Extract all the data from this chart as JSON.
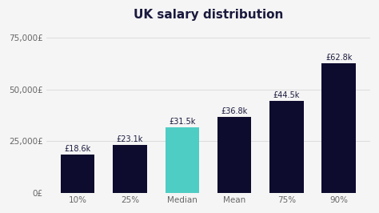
{
  "title": "UK salary distribution",
  "categories": [
    "10%",
    "25%",
    "Median",
    "Mean",
    "75%",
    "90%"
  ],
  "values": [
    18600,
    23100,
    31500,
    36800,
    44500,
    62800
  ],
  "labels": [
    "£18.6k",
    "£23.1k",
    "£31.5k",
    "£36.8k",
    "£44.5k",
    "£62.8k"
  ],
  "bar_colors": [
    "#0d0b2e",
    "#0d0b2e",
    "#4ecdc4",
    "#0d0b2e",
    "#0d0b2e",
    "#0d0b2e"
  ],
  "background_color": "#f5f5f5",
  "plot_bg_color": "#f5f5f5",
  "ylim": [
    0,
    80000
  ],
  "yticks": [
    0,
    25000,
    50000,
    75000
  ],
  "ytick_labels": [
    "0£",
    "25,000£",
    "50,000£",
    "75,000£"
  ],
  "title_fontsize": 11,
  "label_fontsize": 7,
  "tick_fontsize": 7.5,
  "bar_width": 0.65,
  "title_color": "#1a1a3e",
  "label_color": "#1a1a3e",
  "tick_color": "#666666",
  "grid_color": "#d8d8d8"
}
